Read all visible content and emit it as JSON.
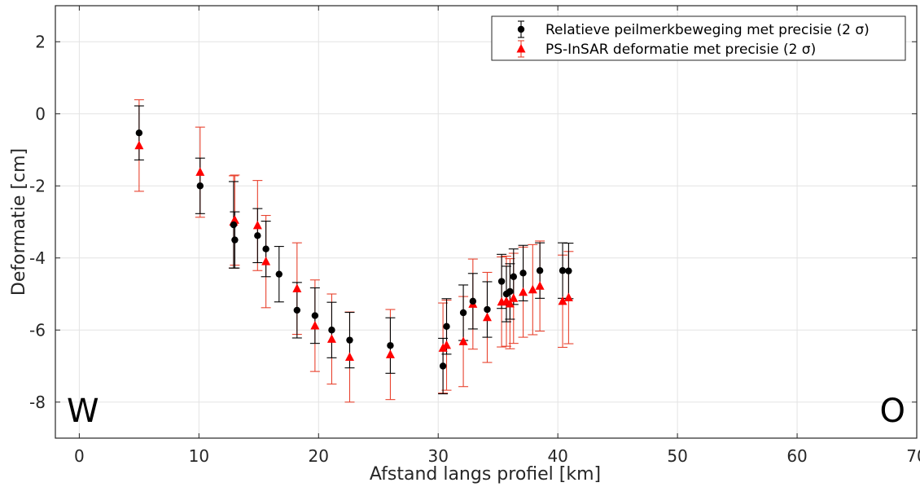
{
  "chart_data": {
    "type": "scatter",
    "xlabel": "Afstand langs profiel [km]",
    "ylabel": "Deformatie [cm]",
    "xlim": [
      -2,
      70
    ],
    "ylim": [
      -9,
      3
    ],
    "xticks": [
      0,
      10,
      20,
      30,
      40,
      50,
      60,
      70
    ],
    "yticks": [
      -8,
      -6,
      -4,
      -2,
      0,
      2
    ],
    "grid": true,
    "legend_position": "top-right",
    "corner_labels": {
      "left": "W",
      "right": "O"
    },
    "colors": {
      "peilmerk": "#000000",
      "insar": "#ff0000",
      "insar_err": "#e8432f",
      "grid": "#e3e3e3",
      "axis": "#262626"
    },
    "series": [
      {
        "name": "Relatieve peilmerkbeweging met precisie (2 σ)",
        "marker": "circle",
        "points": [
          {
            "x": 5.0,
            "y": -0.53,
            "err": 0.75
          },
          {
            "x": 10.1,
            "y": -2.0,
            "err": 0.77
          },
          {
            "x": 12.9,
            "y": -3.08,
            "err": 1.2
          },
          {
            "x": 13.0,
            "y": -3.5,
            "err": 0.78
          },
          {
            "x": 14.9,
            "y": -3.38,
            "err": 0.75
          },
          {
            "x": 15.6,
            "y": -3.75,
            "err": 0.77
          },
          {
            "x": 16.7,
            "y": -4.45,
            "err": 0.77
          },
          {
            "x": 18.2,
            "y": -5.45,
            "err": 0.77
          },
          {
            "x": 19.7,
            "y": -5.6,
            "err": 0.77
          },
          {
            "x": 21.1,
            "y": -6.0,
            "err": 0.77
          },
          {
            "x": 22.6,
            "y": -6.28,
            "err": 0.77
          },
          {
            "x": 26.0,
            "y": -6.43,
            "err": 0.77
          },
          {
            "x": 30.4,
            "y": -7.0,
            "err": 0.77
          },
          {
            "x": 30.7,
            "y": -5.9,
            "err": 0.77
          },
          {
            "x": 32.1,
            "y": -5.52,
            "err": 0.77
          },
          {
            "x": 32.9,
            "y": -5.2,
            "err": 0.77
          },
          {
            "x": 34.1,
            "y": -5.43,
            "err": 0.77
          },
          {
            "x": 35.3,
            "y": -4.65,
            "err": 0.75
          },
          {
            "x": 35.7,
            "y": -5.0,
            "err": 0.77
          },
          {
            "x": 36.0,
            "y": -4.93,
            "err": 0.77
          },
          {
            "x": 36.3,
            "y": -4.52,
            "err": 0.77
          },
          {
            "x": 37.1,
            "y": -4.42,
            "err": 0.77
          },
          {
            "x": 38.5,
            "y": -4.35,
            "err": 0.77
          },
          {
            "x": 40.4,
            "y": -4.35,
            "err": 0.77
          },
          {
            "x": 40.9,
            "y": -4.36,
            "err": 0.77
          }
        ]
      },
      {
        "name": "PS-InSAR deformatie met precisie (2 σ)",
        "marker": "triangle",
        "points": [
          {
            "x": 5.0,
            "y": -0.88,
            "err": 1.27
          },
          {
            "x": 10.1,
            "y": -1.62,
            "err": 1.25
          },
          {
            "x": 12.9,
            "y": -3.0,
            "err": 1.28
          },
          {
            "x": 13.0,
            "y": -2.95,
            "err": 1.25
          },
          {
            "x": 14.9,
            "y": -3.1,
            "err": 1.25
          },
          {
            "x": 15.6,
            "y": -4.1,
            "err": 1.28
          },
          {
            "x": 18.2,
            "y": -4.85,
            "err": 1.27
          },
          {
            "x": 19.7,
            "y": -5.88,
            "err": 1.27
          },
          {
            "x": 21.1,
            "y": -6.25,
            "err": 1.25
          },
          {
            "x": 22.6,
            "y": -6.75,
            "err": 1.25
          },
          {
            "x": 26.0,
            "y": -6.68,
            "err": 1.25
          },
          {
            "x": 30.4,
            "y": -6.5,
            "err": 1.25
          },
          {
            "x": 30.7,
            "y": -6.42,
            "err": 1.25
          },
          {
            "x": 32.1,
            "y": -6.32,
            "err": 1.25
          },
          {
            "x": 32.9,
            "y": -5.28,
            "err": 1.25
          },
          {
            "x": 34.1,
            "y": -5.65,
            "err": 1.25
          },
          {
            "x": 35.3,
            "y": -5.22,
            "err": 1.25
          },
          {
            "x": 35.7,
            "y": -5.2,
            "err": 1.25
          },
          {
            "x": 36.0,
            "y": -5.27,
            "err": 1.25
          },
          {
            "x": 36.3,
            "y": -5.12,
            "err": 1.25
          },
          {
            "x": 37.1,
            "y": -4.95,
            "err": 1.25
          },
          {
            "x": 37.9,
            "y": -4.88,
            "err": 1.25
          },
          {
            "x": 38.5,
            "y": -4.78,
            "err": 1.25
          },
          {
            "x": 40.4,
            "y": -5.2,
            "err": 1.28
          },
          {
            "x": 40.9,
            "y": -5.1,
            "err": 1.28
          }
        ]
      }
    ]
  }
}
